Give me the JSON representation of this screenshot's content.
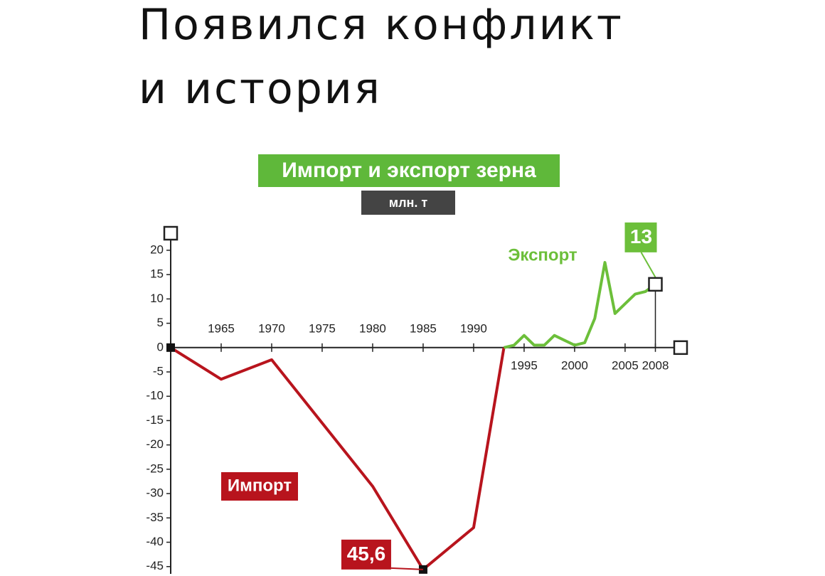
{
  "title": [
    "Появился конфликт",
    "и история"
  ],
  "chart_data": {
    "type": "line",
    "title": "Импорт и экспорт зерна",
    "subtitle": "млн. т",
    "xlim": [
      1960,
      2010.5
    ],
    "ylim": [
      -46.5,
      23.5
    ],
    "xticks": [
      1965,
      1970,
      1975,
      1980,
      1985,
      1990,
      1995,
      2000,
      2005,
      2008
    ],
    "yticks": [
      -45,
      -40,
      -35,
      -30,
      -25,
      -20,
      -15,
      -10,
      -5,
      0,
      5,
      10,
      15,
      20
    ],
    "series": [
      {
        "name": "Импорт",
        "color": "#b8141d",
        "x": [
          1960,
          1965,
          1970,
          1975,
          1980,
          1985,
          1990,
          1993
        ],
        "values": [
          0,
          -6.5,
          -2.5,
          -15.5,
          -28.5,
          -45.6,
          -37,
          0
        ],
        "value_labels": [
          null,
          null,
          null,
          null,
          null,
          "45,6",
          null,
          null
        ]
      },
      {
        "name": "Экспорт",
        "color": "#6cbf3a",
        "x": [
          1993,
          1994,
          1995,
          1996,
          1997,
          1998,
          1999,
          2000,
          2001,
          2002,
          2003,
          2004,
          2005,
          2006,
          2007,
          2008
        ],
        "values": [
          0,
          0.5,
          2.5,
          0.5,
          0.5,
          2.5,
          1.5,
          0.5,
          1,
          6,
          17.5,
          7,
          9,
          11,
          11.5,
          13
        ],
        "value_labels": [
          null,
          null,
          null,
          null,
          null,
          null,
          null,
          null,
          null,
          null,
          null,
          null,
          null,
          null,
          null,
          "13"
        ]
      }
    ]
  }
}
